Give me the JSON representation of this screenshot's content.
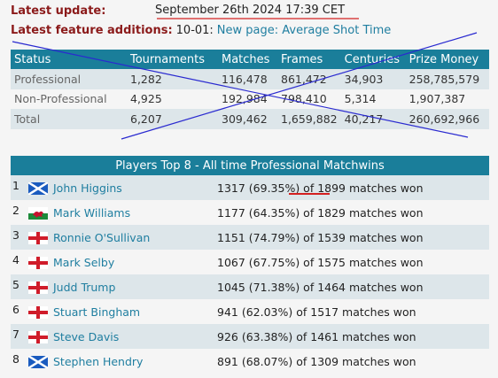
{
  "info": {
    "update_label": "Latest update:",
    "update_value": "September 26th 2024 17:39 CET",
    "features_label": "Latest feature additions:",
    "features_date": "10-01:",
    "features_link": "New page: Average Shot Time"
  },
  "stats": {
    "headers": [
      "Status",
      "Tournaments",
      "Matches",
      "Frames",
      "Centuries",
      "Prize Money"
    ],
    "rows": [
      [
        "Professional",
        "1,282",
        "116,478",
        "861,472",
        "34,903",
        "258,785,579"
      ],
      [
        "Non-Professional",
        "4,925",
        "192,984",
        "798,410",
        "5,314",
        "1,907,387"
      ],
      [
        "Total",
        "6,207",
        "309,462",
        "1,659,882",
        "40,217",
        "260,692,966"
      ]
    ]
  },
  "top8": {
    "title": "Players Top 8 - All time Professional Matchwins",
    "players": [
      {
        "rank": "1",
        "flag": "scotland-flag-icon",
        "name": "John Higgins",
        "wins": "1317 (69.35%) of ",
        "total": "1899",
        "suffix": " matches won"
      },
      {
        "rank": "2",
        "flag": "wales-flag-icon",
        "name": "Mark Williams",
        "wins": "1177 (64.35%) of ",
        "total": "1829",
        "suffix": " matches won"
      },
      {
        "rank": "3",
        "flag": "england-flag-icon",
        "name": "Ronnie O'Sullivan",
        "wins": "1151 (74.79%) of ",
        "total": "1539",
        "suffix": " matches won"
      },
      {
        "rank": "4",
        "flag": "england-flag-icon",
        "name": "Mark Selby",
        "wins": "1067 (67.75%) of ",
        "total": "1575",
        "suffix": " matches won"
      },
      {
        "rank": "5",
        "flag": "england-flag-icon",
        "name": "Judd Trump",
        "wins": "1045 (71.38%) of ",
        "total": "1464",
        "suffix": " matches won"
      },
      {
        "rank": "6",
        "flag": "england-flag-icon",
        "name": "Stuart Bingham",
        "wins": "941 (62.03%) of ",
        "total": "1517",
        "suffix": " matches won"
      },
      {
        "rank": "7",
        "flag": "england-flag-icon",
        "name": "Steve Davis",
        "wins": "926 (63.38%) of ",
        "total": "1461",
        "suffix": " matches won"
      },
      {
        "rank": "8",
        "flag": "scotland-flag-icon",
        "name": "Stephen Hendry",
        "wins": "891 (68.07%) of ",
        "total": "1309",
        "suffix": " matches won"
      }
    ]
  },
  "colors": {
    "header_bg": "#1a7e9a",
    "row_alt_bg": "#dde6ea",
    "label_red": "#8b1a1a",
    "link_blue": "#1f7ea0",
    "annotation_red": "#d42020",
    "annotation_blue": "#2a2ad0"
  }
}
